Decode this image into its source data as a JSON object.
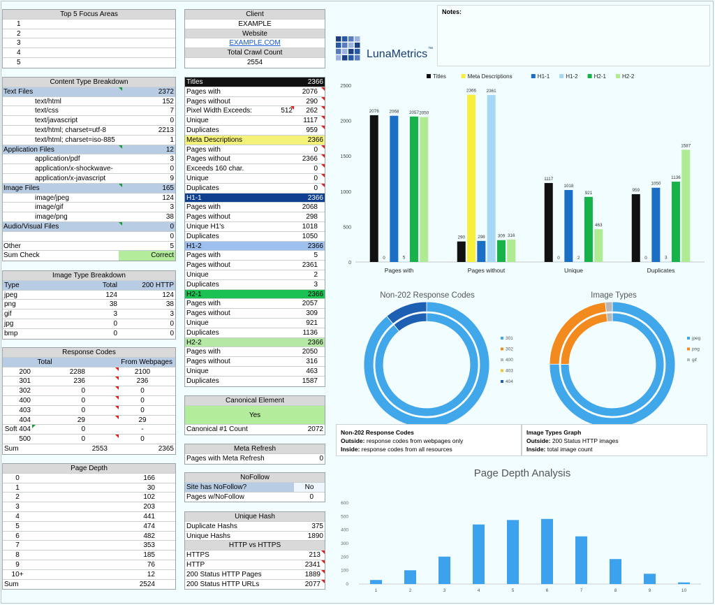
{
  "focus": {
    "title": "Top 5 Focus Areas",
    "rows": [
      "1",
      "2",
      "3",
      "4",
      "5"
    ]
  },
  "client": {
    "client_label": "Client",
    "client_value": "EXAMPLE",
    "website_label": "Website",
    "website_value": "EXAMPLE.COM",
    "crawl_label": "Total Crawl Count",
    "crawl_value": "2554"
  },
  "notes": {
    "label": "Notes:"
  },
  "logo": {
    "text": "LunaMetrics",
    "tm": "™"
  },
  "content": {
    "title": "Content Type Breakdown",
    "rows": [
      {
        "label": "Text Files",
        "value": "2372",
        "kind": "cat"
      },
      {
        "label": "text/html",
        "value": "152"
      },
      {
        "label": "text/css",
        "value": "7"
      },
      {
        "label": "text/javascript",
        "value": "0"
      },
      {
        "label": "text/html; charset=utf-8",
        "value": "2213"
      },
      {
        "label": "text/html; charset=iso-885",
        "value": "1"
      },
      {
        "label": "Application Files",
        "value": "12",
        "kind": "cat"
      },
      {
        "label": "application/pdf",
        "value": "3"
      },
      {
        "label": "application/x-shockwave-",
        "value": "0"
      },
      {
        "label": "application/x-javascript",
        "value": "9"
      },
      {
        "label": "Image Files",
        "value": "165",
        "kind": "cat"
      },
      {
        "label": "image/jpeg",
        "value": "124"
      },
      {
        "label": "image/gif",
        "value": "3"
      },
      {
        "label": "image/png",
        "value": "38"
      },
      {
        "label": "Audio/Visual Files",
        "value": "0",
        "kind": "cat"
      },
      {
        "label": "",
        "value": "0"
      },
      {
        "label": "Other",
        "value": "5",
        "kind": "cat"
      }
    ],
    "sum_label": "Sum Check",
    "sum_value": "Correct"
  },
  "imagetype": {
    "title": "Image Type Breakdown",
    "h1": "Type",
    "h2": "Total",
    "h3": "200 HTTP",
    "rows": [
      {
        "t": "jpeg",
        "a": "124",
        "b": "124"
      },
      {
        "t": "png",
        "a": "38",
        "b": "38"
      },
      {
        "t": "gif",
        "a": "3",
        "b": "3"
      },
      {
        "t": "jpg",
        "a": "0",
        "b": "0"
      },
      {
        "t": "bmp",
        "a": "0",
        "b": "0"
      }
    ]
  },
  "response": {
    "title": "Response Codes",
    "h1": "Total",
    "h2": "From Webpages",
    "rows": [
      {
        "c": "200",
        "a": "2288",
        "b": "2100"
      },
      {
        "c": "301",
        "a": "236",
        "b": "236"
      },
      {
        "c": "302",
        "a": "0",
        "b": "0"
      },
      {
        "c": "400",
        "a": "0",
        "b": "0"
      },
      {
        "c": "403",
        "a": "0",
        "b": "0"
      },
      {
        "c": "404",
        "a": "29",
        "b": "29"
      },
      {
        "c": "Soft 404",
        "a": "0",
        "b": "-"
      },
      {
        "c": "500",
        "a": "0",
        "b": "0"
      }
    ],
    "sum_label": "Sum",
    "sum_a": "2553",
    "sum_b": "2365"
  },
  "depth": {
    "title": "Page Depth",
    "rows": [
      {
        "d": "0",
        "v": "166"
      },
      {
        "d": "1",
        "v": "30"
      },
      {
        "d": "2",
        "v": "102"
      },
      {
        "d": "3",
        "v": "203"
      },
      {
        "d": "4",
        "v": "441"
      },
      {
        "d": "5",
        "v": "474"
      },
      {
        "d": "6",
        "v": "482"
      },
      {
        "d": "7",
        "v": "353"
      },
      {
        "d": "8",
        "v": "185"
      },
      {
        "d": "9",
        "v": "76"
      },
      {
        "d": "10+",
        "v": "12"
      }
    ],
    "sum_label": "Sum",
    "sum_value": "2524"
  },
  "meta": {
    "sections": [
      {
        "title": "Titles",
        "total": "2366",
        "cls": "dk",
        "rows": [
          {
            "l": "Pages with",
            "v": "2076"
          },
          {
            "l": "Pages without",
            "v": "290"
          },
          {
            "l": "Pixel Width Exceeds:",
            "m": "512",
            "v": "262"
          },
          {
            "l": "Unique",
            "v": "1117"
          },
          {
            "l": "Duplicates",
            "v": "959"
          }
        ]
      },
      {
        "title": "Meta Descriptions",
        "total": "2366",
        "cls": "yl",
        "rows": [
          {
            "l": "Pages with",
            "v": "0"
          },
          {
            "l": "Pages without",
            "v": "2366"
          },
          {
            "l": "Exceeds 160 char.",
            "v": "0"
          },
          {
            "l": "Unique",
            "v": "0"
          },
          {
            "l": "Duplicates",
            "v": "0"
          }
        ]
      },
      {
        "title": "H1-1",
        "total": "2366",
        "cls": "nb",
        "rows": [
          {
            "l": "Pages with",
            "v": "2068"
          },
          {
            "l": "Pages without",
            "v": "298"
          },
          {
            "l": "Unique H1's",
            "v": "1018"
          },
          {
            "l": "Duplicates",
            "v": "1050"
          }
        ]
      },
      {
        "title": "H1-2",
        "total": "2366",
        "cls": "lb",
        "rows": [
          {
            "l": "Pages with",
            "v": "5"
          },
          {
            "l": "Pages without",
            "v": "2361"
          },
          {
            "l": "Unique",
            "v": "2"
          },
          {
            "l": "Duplicates",
            "v": "3"
          }
        ]
      },
      {
        "title": "H2-1",
        "total": "2366",
        "cls": "gr",
        "rows": [
          {
            "l": "Pages with",
            "v": "2057"
          },
          {
            "l": "Pages without",
            "v": "309"
          },
          {
            "l": "Unique",
            "v": "921"
          },
          {
            "l": "Duplicates",
            "v": "1136"
          }
        ]
      },
      {
        "title": "H2-2",
        "total": "2366",
        "cls": "lg",
        "rows": [
          {
            "l": "Pages with",
            "v": "2050"
          },
          {
            "l": "Pages without",
            "v": "316"
          },
          {
            "l": "Unique",
            "v": "463"
          },
          {
            "l": "Duplicates",
            "v": "1587"
          }
        ]
      }
    ]
  },
  "canonical": {
    "title": "Canonical Element",
    "value": "Yes",
    "count_label": "Canonical #1 Count",
    "count_value": "2072"
  },
  "refresh": {
    "title": "Meta Refresh",
    "label": "Pages with Meta Refresh",
    "value": "0"
  },
  "nofollow": {
    "title": "NoFollow",
    "l1": "Site has NoFollow?",
    "v1": "No",
    "l2": "Pages w/NoFollow",
    "v2": "0"
  },
  "hash": {
    "title": "Unique Hash",
    "l1": "Duplicate Hashs",
    "v1": "375",
    "l2": "Unique Hashs",
    "v2": "1890"
  },
  "https": {
    "title": "HTTP vs HTTPS",
    "rows": [
      {
        "l": "HTTPS",
        "v": "213"
      },
      {
        "l": "HTTP",
        "v": "2341"
      },
      {
        "l": "200 Status HTTP Pages",
        "v": "1889"
      },
      {
        "l": "200 Status HTTP URLs",
        "v": "2077"
      }
    ]
  },
  "chart_data": [
    {
      "type": "bar",
      "title": "",
      "categories": [
        "Pages with",
        "Pages without",
        "Unique",
        "Duplicates"
      ],
      "series": [
        {
          "name": "Titles",
          "color": "#111111",
          "values": [
            2076,
            290,
            1117,
            959
          ]
        },
        {
          "name": "Meta Descriptions",
          "color": "#f7ef3a",
          "values": [
            0,
            2366,
            0,
            0
          ]
        },
        {
          "name": "H1-1",
          "color": "#1a6fc4",
          "values": [
            2068,
            298,
            1018,
            1050
          ]
        },
        {
          "name": "H1-2",
          "color": "#a6d8f5",
          "values": [
            5,
            2361,
            2,
            3
          ]
        },
        {
          "name": "H2-1",
          "color": "#17b34a",
          "values": [
            2057,
            309,
            921,
            1136
          ]
        },
        {
          "name": "H2-2",
          "color": "#aeeb93",
          "values": [
            2050,
            316,
            463,
            1587
          ]
        }
      ],
      "ylim": [
        0,
        2500
      ],
      "yticks": [
        "0",
        "500",
        "1000",
        "1500",
        "2000",
        "2500"
      ]
    },
    {
      "type": "pie",
      "title": "Non-202 Response Codes",
      "labels": [
        "301",
        "302",
        "400",
        "403",
        "404"
      ],
      "colors": [
        "#3fa7ea",
        "#f28a1e",
        "#b8b8b8",
        "#f4c52d",
        "#1c5fb3"
      ],
      "outside": [
        236,
        0,
        0,
        0,
        29
      ],
      "inside": [
        236,
        0,
        0,
        0,
        29
      ]
    },
    {
      "type": "pie",
      "title": "Image Types",
      "labels": [
        "jpeg",
        "png",
        "gif"
      ],
      "colors": [
        "#3fa7ea",
        "#f28a1e",
        "#b8b8b8"
      ],
      "outside": [
        124,
        38,
        3
      ],
      "inside": [
        124,
        38,
        3
      ]
    },
    {
      "type": "bar",
      "title": "Page Depth Analysis",
      "categories": [
        "1",
        "2",
        "3",
        "4",
        "5",
        "6",
        "7",
        "8",
        "9",
        "10"
      ],
      "values": [
        30,
        102,
        203,
        441,
        474,
        482,
        353,
        185,
        76,
        12
      ],
      "ylim": [
        0,
        600
      ],
      "yticks": [
        "0",
        "100",
        "200",
        "300",
        "400",
        "500",
        "600"
      ]
    }
  ],
  "captions": {
    "resp_title": "Non-202 Response Codes",
    "resp_out_label": "Outside:",
    "resp_out": "response codes from webpages only",
    "resp_in_label": "Inside:",
    "resp_in": "response codes from all resources",
    "img_title": "Image Types Graph",
    "img_out_label": "Outside:",
    "img_out": "200 Status HTTP images",
    "img_in_label": "Inside:",
    "img_in": "total image count"
  }
}
